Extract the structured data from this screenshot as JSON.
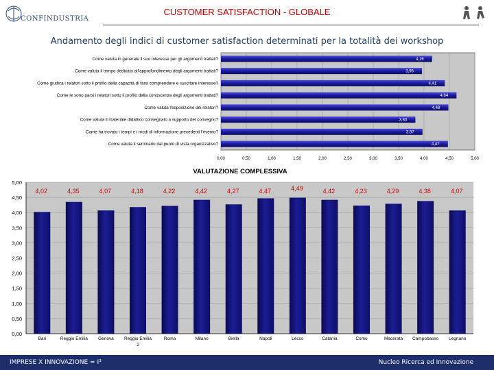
{
  "header": {
    "logo_text": "CONFINDUSTRIA",
    "title": "CUSTOMER SATISFACTION - GLOBALE"
  },
  "subtitle": "Andamento degli indici di customer satisfaction determinati per la totalità dei workshop",
  "footer": {
    "left": "IMPRESE X INNOVAZIONE = I³",
    "right": "Nucleo Ricerca ed Innovazione"
  },
  "colors": {
    "bar_top": "#1a1a8c",
    "bar_bottom": "#1a1a8c",
    "plot_bg": "#c8c8c8",
    "value_label": "#cc0000",
    "footer_bg": "#1d2f6a",
    "title": "#c00000"
  },
  "chart_data": [
    {
      "type": "bar",
      "orientation": "horizontal",
      "title": "",
      "categories": [
        "Come valuta in generale il suo interesse per gli argomenti trattati?",
        "Come valuta il tempo dedicato all'approfondimento degli argomenti trattati?",
        "Come giudica i relatori sotto il profilo delle capacità di farsi comprendere e suscitare interesse?",
        "Come le sono parsi i relatori sotto il profilo della conoscenza degli argomenti trattati?",
        "Come valuta l'esposizione dei relatori?",
        "Come valuta il materiale didattico consegnato a supporto del convegno?",
        "Come ha trovato i tempi e i modi di informazione precedenti l'evento?",
        "Come valuta il seminario dal punto di vista organizzativo?"
      ],
      "values": [
        4.16,
        3.96,
        4.41,
        4.64,
        4.48,
        3.83,
        3.97,
        4.47
      ],
      "value_labels": [
        "4,16",
        "3,96",
        "4,41",
        "4,64",
        "4,48",
        "3,83",
        "3,97",
        "4,47"
      ],
      "xlim": [
        0,
        5
      ],
      "xticks": [
        "0,00",
        "0,50",
        "1,00",
        "1,50",
        "2,00",
        "2,50",
        "3,00",
        "3,50",
        "4,00",
        "4,50",
        "5,00"
      ]
    },
    {
      "type": "bar",
      "orientation": "vertical",
      "title": "VALUTAZIONE COMPLESSIVA",
      "categories": [
        "Bari",
        "Reggio Emilia",
        "Genova",
        "Reggio Emilia 2",
        "Roma",
        "Milano",
        "Biella",
        "Napoli",
        "Lecco",
        "Catania",
        "Como",
        "Macerata",
        "Campobasso",
        "Legnano"
      ],
      "values": [
        4.02,
        4.35,
        4.07,
        4.18,
        4.22,
        4.42,
        4.27,
        4.47,
        4.49,
        4.42,
        4.23,
        4.29,
        4.38,
        4.07
      ],
      "value_labels": [
        "4,02",
        "4,35",
        "4,07",
        "4,18",
        "4,22",
        "4,42",
        "4,27",
        "4,47",
        "4,49",
        "4,42",
        "4,23",
        "4,29",
        "4,38",
        "4,07"
      ],
      "ylim": [
        0,
        5
      ],
      "yticks": [
        "0,00",
        "0,50",
        "1,00",
        "1,50",
        "2,00",
        "2,50",
        "3,00",
        "3,50",
        "4,00",
        "4,50",
        "5,00"
      ]
    }
  ]
}
